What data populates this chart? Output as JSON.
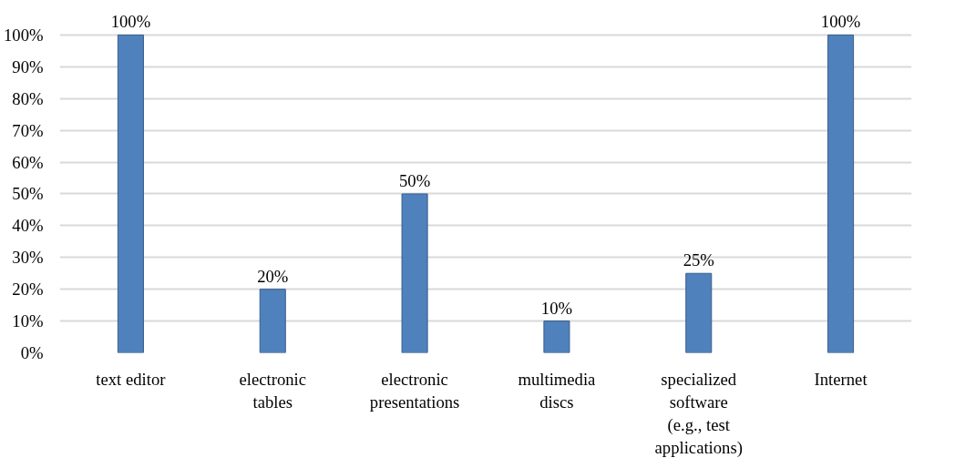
{
  "chart_data": {
    "type": "bar",
    "categories": [
      "text editor",
      "electronic\ntables",
      "electronic\npresentations",
      "multimedia\ndiscs",
      "specialized\nsoftware\n(e.g., test\napplications)",
      "Internet"
    ],
    "values": [
      100,
      20,
      50,
      10,
      25,
      100
    ],
    "value_labels": [
      "100%",
      "20%",
      "50%",
      "10%",
      "25%",
      "100%"
    ],
    "color": "#4f81bd",
    "ylim": [
      0,
      100
    ],
    "yticks": [
      {
        "value": 0,
        "label": "0%"
      },
      {
        "value": 10,
        "label": "10%"
      },
      {
        "value": 20,
        "label": "20%"
      },
      {
        "value": 30,
        "label": "30%"
      },
      {
        "value": 40,
        "label": "40%"
      },
      {
        "value": 50,
        "label": "50%"
      },
      {
        "value": 60,
        "label": "60%"
      },
      {
        "value": 70,
        "label": "70%"
      },
      {
        "value": 80,
        "label": "80%"
      },
      {
        "value": 90,
        "label": "90%"
      },
      {
        "value": 100,
        "label": "100%"
      }
    ],
    "grid": "y"
  }
}
